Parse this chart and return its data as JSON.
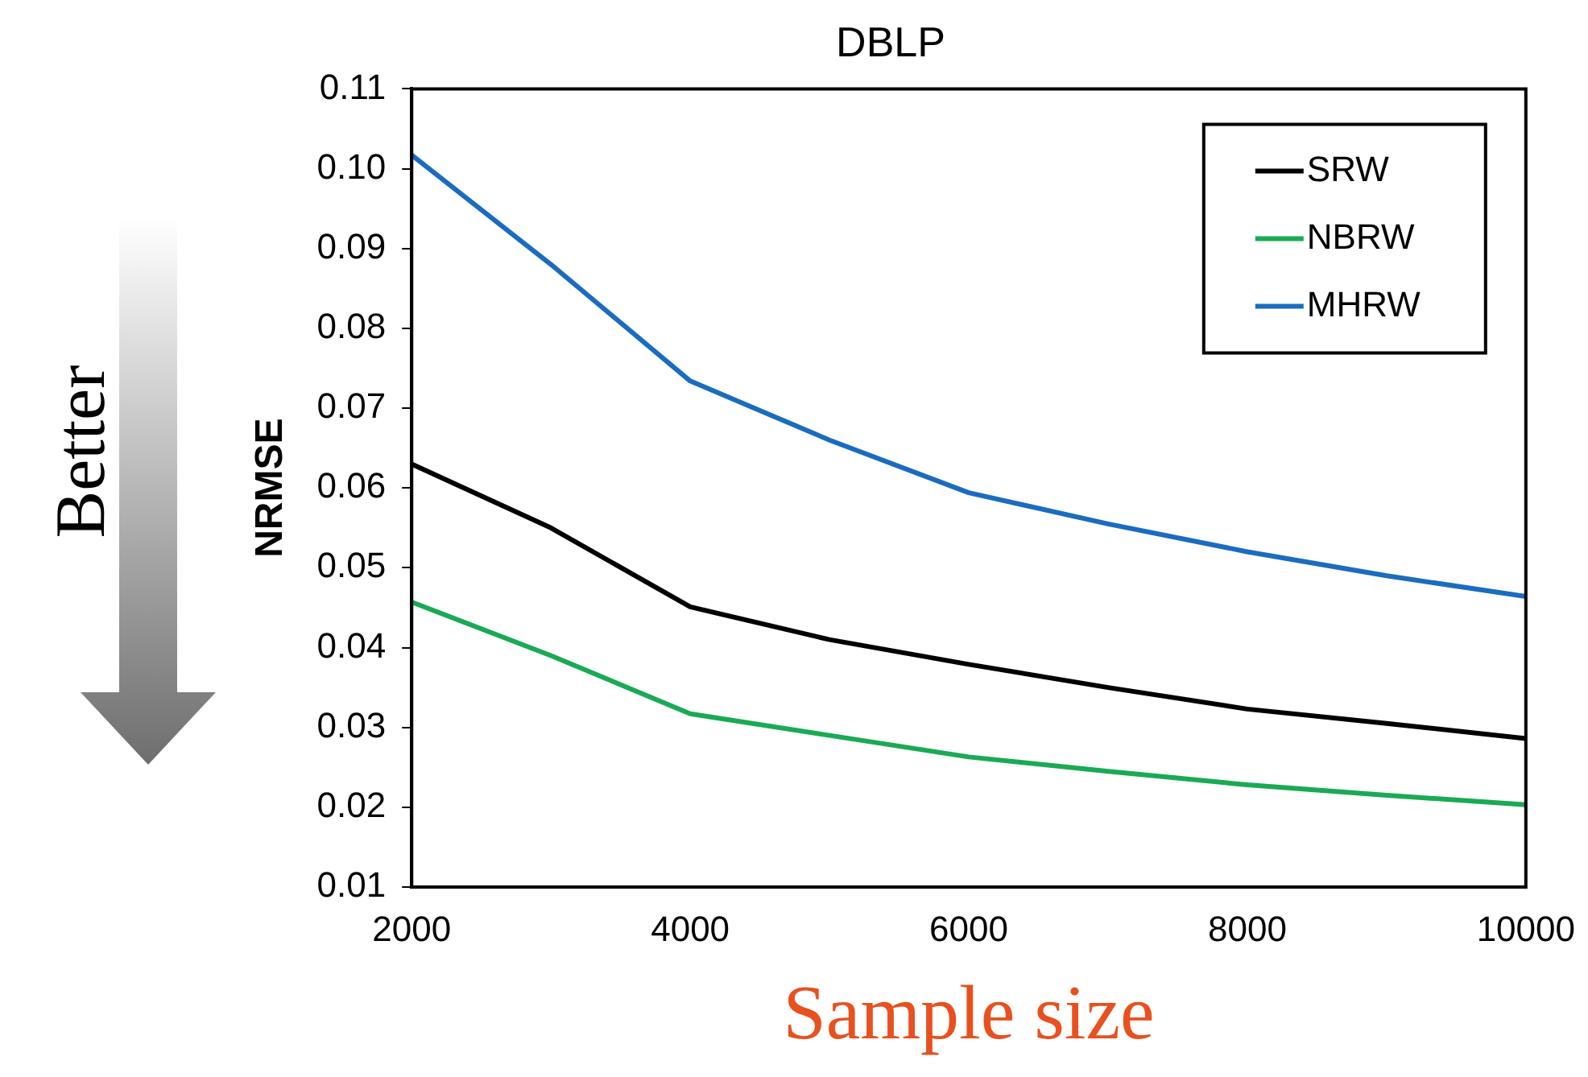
{
  "chart_data": {
    "type": "line",
    "title": "DBLP",
    "xlabel": "Sample size",
    "ylabel": "NRMSE",
    "x": [
      2000,
      3000,
      4000,
      5000,
      6000,
      7000,
      8000,
      9000,
      10000
    ],
    "series": [
      {
        "name": "SRW",
        "color": "#000000",
        "values": [
          0.063,
          0.055,
          0.0451,
          0.041,
          0.0379,
          0.035,
          0.0323,
          0.0305,
          0.0286
        ]
      },
      {
        "name": "NBRW",
        "color": "#1aaa55",
        "values": [
          0.0457,
          0.039,
          0.0317,
          0.029,
          0.0263,
          0.0245,
          0.0228,
          0.0215,
          0.0203
        ]
      },
      {
        "name": "MHRW",
        "color": "#1a6cc0",
        "values": [
          0.1017,
          0.088,
          0.0734,
          0.066,
          0.0594,
          0.0555,
          0.052,
          0.049,
          0.0464
        ]
      }
    ],
    "xlim": [
      2000,
      10000
    ],
    "xticks": [
      2000,
      4000,
      6000,
      8000,
      10000
    ],
    "ylim": [
      0.01,
      0.11
    ],
    "yticks": [
      0.01,
      0.02,
      0.03,
      0.04,
      0.05,
      0.06,
      0.07,
      0.08,
      0.09,
      {
        "value": 0.1,
        "label": "0.10"
      },
      0.11
    ],
    "grid": false,
    "legend": "top right",
    "marker": "none",
    "line_style": "solid",
    "annotations": [
      "Better"
    ]
  }
}
